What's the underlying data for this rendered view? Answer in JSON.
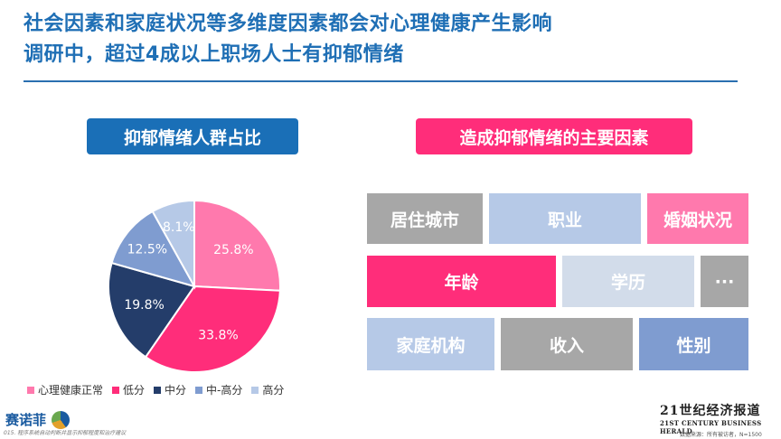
{
  "header": {
    "title_line1": "社会因素和家庭状况等多维度因素都会对心理健康产生影响",
    "title_line2": "调研中，超过4成以上职场人士有抑郁情绪"
  },
  "left_panel": {
    "title": "抑郁情绪人群占比"
  },
  "right_panel": {
    "title": "造成抑郁情绪的主要因素",
    "factors": [
      "居住城市",
      "职业",
      "婚姻状况",
      "年龄",
      "学历",
      "···",
      "家庭机构",
      "收入",
      "性别"
    ]
  },
  "colors": {
    "pink": "#ff2d7a",
    "pink_light": "#ff79ad",
    "navy": "#243d6a",
    "mid_blue": "#7f9cd0",
    "light_blue": "#b6c9e7",
    "grey": "#a7a7a7",
    "pale": "#d2dcea",
    "title_blue": "#1f6fb5"
  },
  "chart_data": {
    "type": "pie",
    "title": "",
    "labels": [
      "心理健康正常",
      "低分",
      "中分",
      "中-高分",
      "高分"
    ],
    "values": [
      25.8,
      33.8,
      19.8,
      12.5,
      8.1
    ],
    "value_labels": [
      "25.8%",
      "33.8%",
      "19.8%",
      "12.5%",
      "8.1%"
    ],
    "colors": [
      "#ff79ad",
      "#ff2d7a",
      "#243d6a",
      "#7f9cd0",
      "#b6c9e7"
    ],
    "legend": "bottom"
  },
  "footer": {
    "brand_left": "赛诺菲",
    "note_left": "015. 程序系统自动判断并显示抑郁程度和治疗建议",
    "brand_right_cn": "21世纪经济报道",
    "brand_right_en": "21ST CENTURY BUSINESS HERALD",
    "note_right": "数据来源：所有被访者，N=1500"
  }
}
